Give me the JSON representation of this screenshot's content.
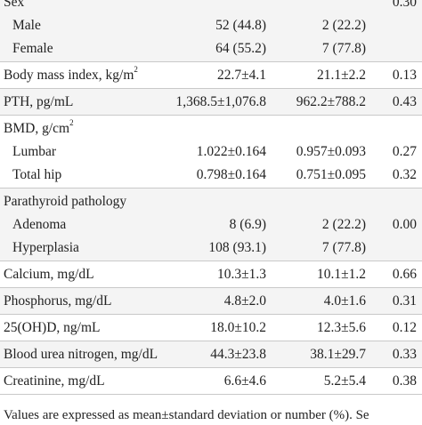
{
  "groups": [
    {
      "shaded": true,
      "lines": [
        {
          "label": "Sex",
          "sub": false,
          "c1": "",
          "c2": "",
          "c3": "0.30"
        },
        {
          "label": "Male",
          "sub": true,
          "c1": "52 (44.8)",
          "c2": "2 (22.2)",
          "c3": ""
        },
        {
          "label": "Female",
          "sub": true,
          "c1": "64 (55.2)",
          "c2": "7 (77.8)",
          "c3": ""
        }
      ]
    },
    {
      "shaded": false,
      "lines": [
        {
          "label": "Body mass index, kg/m",
          "sup": "2",
          "sub": false,
          "c1": "22.7±4.1",
          "c2": "21.1±2.2",
          "c3": "0.13"
        }
      ]
    },
    {
      "shaded": true,
      "lines": [
        {
          "label": "PTH, pg/mL",
          "sub": false,
          "c1": "1,368.5±1,076.8",
          "c2": "962.2±788.2",
          "c3": "0.43"
        }
      ]
    },
    {
      "shaded": false,
      "lines": [
        {
          "label": "BMD, g/cm",
          "sup": "2",
          "sub": false,
          "c1": "",
          "c2": "",
          "c3": ""
        },
        {
          "label": "Lumbar",
          "sub": true,
          "c1": "1.022±0.164",
          "c2": "0.957±0.093",
          "c3": "0.27"
        },
        {
          "label": "Total hip",
          "sub": true,
          "c1": "0.798±0.164",
          "c2": "0.751±0.095",
          "c3": "0.32"
        }
      ]
    },
    {
      "shaded": true,
      "lines": [
        {
          "label": "Parathyroid pathology",
          "sub": false,
          "c1": "",
          "c2": "",
          "c3": ""
        },
        {
          "label": "Adenoma",
          "sub": true,
          "c1": "8 (6.9)",
          "c2": "2 (22.2)",
          "c3": "0.00"
        },
        {
          "label": "Hyperplasia",
          "sub": true,
          "c1": "108 (93.1)",
          "c2": "7 (77.8)",
          "c3": ""
        }
      ]
    },
    {
      "shaded": false,
      "lines": [
        {
          "label": "Calcium, mg/dL",
          "sub": false,
          "c1": "10.3±1.3",
          "c2": "10.1±1.2",
          "c3": "0.66"
        }
      ]
    },
    {
      "shaded": true,
      "lines": [
        {
          "label": "Phosphorus, mg/dL",
          "sub": false,
          "c1": "4.8±2.0",
          "c2": "4.0±1.6",
          "c3": "0.31"
        }
      ]
    },
    {
      "shaded": false,
      "lines": [
        {
          "label": "25(OH)D, ng/mL",
          "sub": false,
          "c1": "18.0±10.2",
          "c2": "12.3±5.6",
          "c3": "0.12"
        }
      ]
    },
    {
      "shaded": true,
      "lines": [
        {
          "label": "Blood urea nitrogen, mg/dL",
          "sub": false,
          "c1": "44.3±23.8",
          "c2": "38.1±29.7",
          "c3": "0.33"
        }
      ]
    },
    {
      "shaded": false,
      "lines": [
        {
          "label": "Creatinine, mg/dL",
          "sub": false,
          "c1": "6.6±4.6",
          "c2": "5.2±5.4",
          "c3": "0.38"
        }
      ]
    }
  ],
  "footnote": "Values are expressed as mean±standard deviation or number (%). Se"
}
